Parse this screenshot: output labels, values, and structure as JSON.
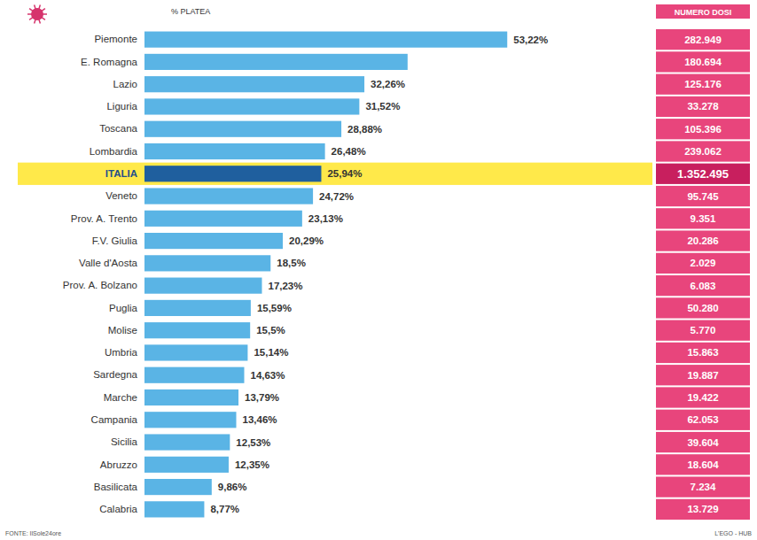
{
  "chart_data": {
    "type": "bar",
    "orientation": "horizontal",
    "categories": [
      "Piemonte",
      "E. Romagna",
      "Lazio",
      "Liguria",
      "Toscana",
      "Lombardia",
      "ITALIA",
      "Veneto",
      "Prov. A. Trento",
      "F.V. Giulia",
      "Valle d'Aosta",
      "Prov. A. Bolzano",
      "Puglia",
      "Molise",
      "Umbria",
      "Sardegna",
      "Marche",
      "Campania",
      "Sicilia",
      "Abruzzo",
      "Basilicata",
      "Calabria"
    ],
    "values": [
      53.22,
      38.6,
      32.26,
      31.52,
      28.88,
      26.48,
      25.94,
      24.72,
      23.13,
      20.29,
      18.5,
      17.23,
      15.59,
      15.5,
      15.14,
      14.63,
      13.79,
      13.46,
      12.53,
      12.35,
      9.86,
      8.77
    ],
    "value_labels": [
      "53,22%",
      null,
      "32,26%",
      "31,52%",
      "28,88%",
      "26,48%",
      "25,94%",
      "24,72%",
      "23,13%",
      "20,29%",
      "18,5%",
      "17,23%",
      "15,59%",
      "15,5%",
      "15,14%",
      "14,63%",
      "13,79%",
      "13,46%",
      "12,53%",
      "12,35%",
      "9,86%",
      "8,77%"
    ],
    "data_labels": true,
    "colors": [
      "#5ab4e5",
      "#5ab4e5",
      "#5ab4e5",
      "#5ab4e5",
      "#5ab4e5",
      "#5ab4e5",
      "#1f5f9e",
      "#5ab4e5",
      "#5ab4e5",
      "#5ab4e5",
      "#5ab4e5",
      "#5ab4e5",
      "#5ab4e5",
      "#5ab4e5",
      "#5ab4e5",
      "#5ab4e5",
      "#5ab4e5",
      "#5ab4e5",
      "#5ab4e5",
      "#5ab4e5",
      "#5ab4e5",
      "#5ab4e5"
    ],
    "xlim": [
      0,
      58
    ],
    "tick_labels": "y",
    "grid": false,
    "values_title": "% PLATEA",
    "doses_title": "NUMERO DOSI",
    "doses": [
      "282.949",
      "180.694",
      "125.176",
      "33.278",
      "105.396",
      "239.062",
      "1.352.495",
      "95.745",
      "9.351",
      "20.286",
      "2.029",
      "6.083",
      "50.280",
      "5.770",
      "15.863",
      "19.887",
      "19.422",
      "62.053",
      "39.604",
      "18.604",
      "7.234",
      "13.729"
    ],
    "source": "FONTE: IlSole24ore",
    "credit": "L'EGO - HUB"
  }
}
